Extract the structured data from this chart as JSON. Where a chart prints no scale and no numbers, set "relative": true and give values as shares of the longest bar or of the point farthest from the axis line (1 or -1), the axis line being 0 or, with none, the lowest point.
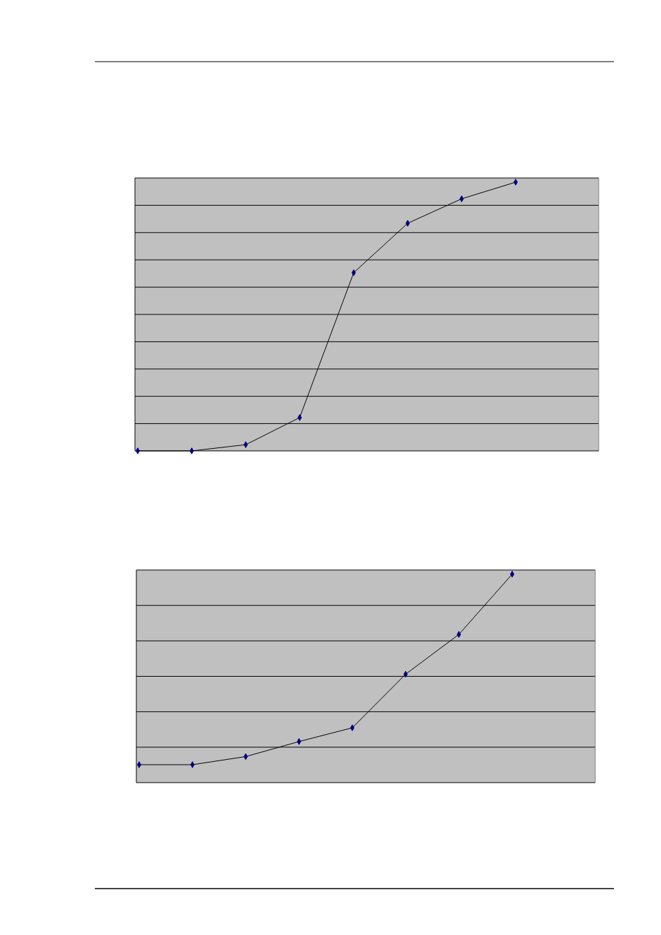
{
  "chart_data": [
    {
      "type": "line",
      "relative": true,
      "categories": [
        null,
        null,
        null,
        null,
        null,
        null,
        null,
        null
      ],
      "series": [
        {
          "color": "#000000",
          "values": [
            0,
            0,
            0.023,
            0.124,
            0.663,
            0.847,
            0.938,
            1
          ]
        }
      ],
      "marker": "diamond",
      "grid": "y"
    },
    {
      "type": "line",
      "relative": true,
      "categories": [
        null,
        null,
        null,
        null,
        null,
        null,
        null,
        null
      ],
      "series": [
        {
          "color": "#000000",
          "values": [
            0.086,
            0.086,
            0.125,
            0.197,
            0.263,
            0.52,
            0.711,
            1
          ]
        }
      ],
      "marker": "diamond",
      "grid": "y"
    }
  ]
}
